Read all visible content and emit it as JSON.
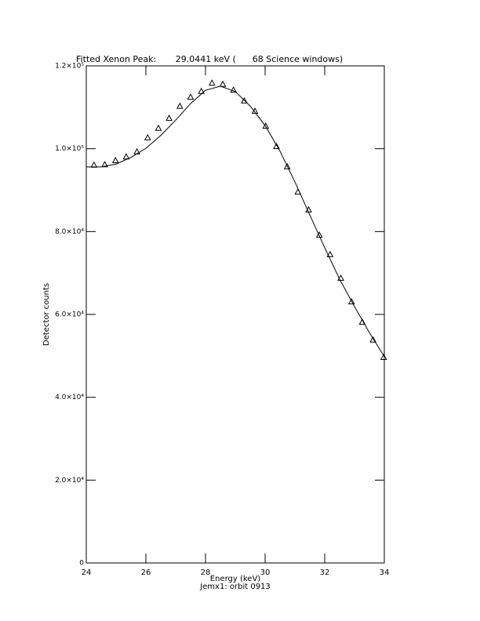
{
  "chart_data": {
    "type": "scatter",
    "title": "Fitted Xenon Peak:       29.0441 keV (      68 Science windows)",
    "x_label": "Energy (keV)",
    "y_label": "Detector counts",
    "footer": "Jemx1: orbit 0913",
    "xlim": [
      24,
      34
    ],
    "ylim": [
      0,
      120000
    ],
    "xticks": [
      24,
      26,
      28,
      30,
      32,
      34
    ],
    "yticks": [
      0,
      {
        "value": 20000,
        "label": "2.0×10⁴"
      },
      {
        "value": 40000,
        "label": "4.0×10⁴"
      },
      {
        "value": 60000,
        "label": "6.0×10⁴"
      },
      {
        "value": 80000,
        "label": "8.0×10⁴"
      },
      {
        "value": 100000,
        "label": "1.0×10⁵"
      },
      {
        "value": 120000,
        "label": "1.2×10⁵"
      }
    ],
    "series": [
      {
        "kind": "points",
        "color": "#000000",
        "x": [
          24.26,
          24.62,
          24.98,
          25.34,
          25.7,
          26.06,
          26.42,
          26.78,
          27.14,
          27.5,
          27.86,
          28.22,
          28.58,
          28.94,
          29.3,
          29.66,
          30.02,
          30.38,
          30.74,
          31.1,
          31.46,
          31.82,
          32.18,
          32.54,
          32.9,
          33.26,
          33.62,
          33.98
        ],
        "values": [
          96000,
          96100,
          97100,
          98000,
          99200,
          102600,
          104900,
          107300,
          110200,
          112400,
          113800,
          115800,
          115500,
          114100,
          111500,
          109000,
          105400,
          100500,
          95600,
          89500,
          85200,
          79100,
          74400,
          68700,
          63000,
          58100,
          53800,
          49600
        ]
      },
      {
        "kind": "line",
        "color": "#000000",
        "x": [
          24,
          24.5,
          25,
          25.5,
          26,
          26.5,
          27,
          27.5,
          28,
          28.5,
          29,
          29.5,
          30,
          30.5,
          31,
          31.5,
          32,
          32.5,
          33,
          33.5,
          34
        ],
        "values": [
          95600,
          95600,
          96300,
          97900,
          100100,
          103200,
          106900,
          110900,
          114100,
          115100,
          113800,
          110300,
          105600,
          99400,
          92000,
          84000,
          76100,
          68500,
          61900,
          55600,
          49800
        ]
      }
    ]
  }
}
